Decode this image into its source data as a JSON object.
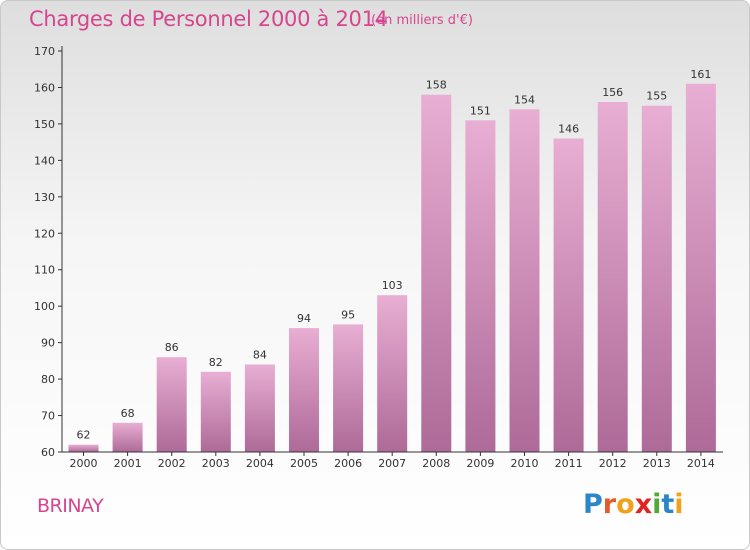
{
  "header": {
    "title": "Charges de Personnel 2000 à 2014",
    "subtitle": "(en milliers d'€)"
  },
  "footer": {
    "place": "BRINAY",
    "logo": [
      "P",
      "r",
      "o",
      "x",
      "i",
      "t",
      "i"
    ]
  },
  "colors": {
    "title": "#d6458f",
    "bar_top": "#e8aed3",
    "bar_bottom": "#ae6a98",
    "axis": "#333333"
  },
  "chart_data": {
    "type": "bar",
    "title": "Charges de Personnel 2000 à 2014",
    "subtitle": "(en milliers d'€)",
    "categories": [
      "2000",
      "2001",
      "2002",
      "2003",
      "2004",
      "2005",
      "2006",
      "2007",
      "2008",
      "2009",
      "2010",
      "2011",
      "2012",
      "2013",
      "2014"
    ],
    "values": [
      62,
      68,
      86,
      82,
      84,
      94,
      95,
      103,
      158,
      151,
      154,
      146,
      156,
      155,
      161
    ],
    "xlabel": "",
    "ylabel": "",
    "ylim": [
      60,
      170
    ],
    "yticks": [
      60,
      70,
      80,
      90,
      100,
      110,
      120,
      130,
      140,
      150,
      160,
      170
    ],
    "grid": false,
    "legend": "none"
  }
}
